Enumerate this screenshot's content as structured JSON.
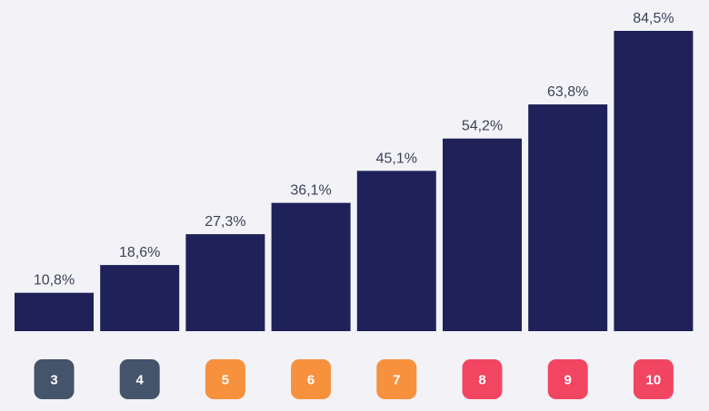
{
  "chart_data": {
    "type": "bar",
    "categories": [
      "3",
      "4",
      "5",
      "6",
      "7",
      "8",
      "9",
      "10"
    ],
    "values": [
      10.8,
      18.6,
      27.3,
      36.1,
      45.1,
      54.2,
      63.8,
      84.5
    ],
    "value_labels": [
      "10,8%",
      "18,6%",
      "27,3%",
      "36,1%",
      "45,1%",
      "54,2%",
      "63,8%",
      "84,5%"
    ],
    "category_colors": [
      "#44546a",
      "#44546a",
      "#f7913d",
      "#f7913d",
      "#f7913d",
      "#f24562",
      "#f24562",
      "#f24562"
    ],
    "bar_color": "#1e2259",
    "ylim": [
      0,
      84.5
    ],
    "title": "",
    "xlabel": "",
    "ylabel": "",
    "grid": false,
    "legend": "none"
  }
}
